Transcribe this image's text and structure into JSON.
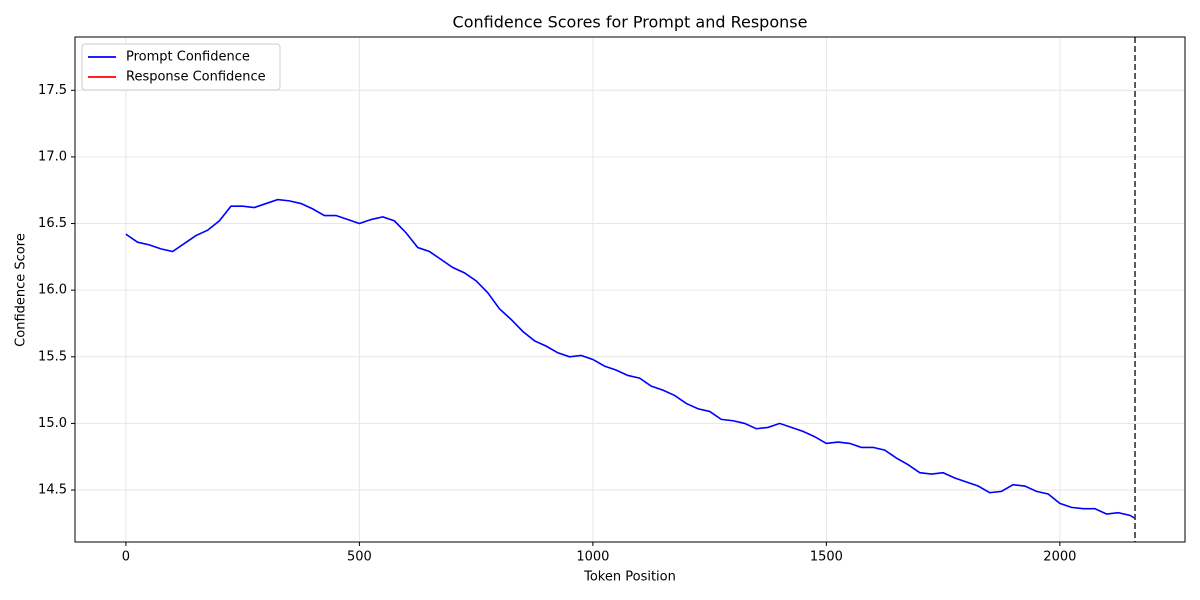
{
  "chart_data": {
    "type": "line",
    "title": "Confidence Scores for Prompt and Response",
    "x_label": "Token Position",
    "y_label": "Confidence Score",
    "xlim": [
      -109,
      2268
    ],
    "ylim": [
      14.11,
      17.9
    ],
    "xticks": [
      0,
      500,
      1000,
      1500,
      2000
    ],
    "yticks": [
      14.5,
      15.0,
      15.5,
      16.0,
      16.5,
      17.0,
      17.5
    ],
    "grid": true,
    "legend": "upper left",
    "vline": {
      "x": 2161,
      "color": "#333333"
    },
    "series": [
      {
        "name": "Prompt Confidence",
        "color": "#0000ff",
        "x": [
          0,
          25,
          50,
          75,
          100,
          125,
          150,
          175,
          200,
          225,
          250,
          275,
          300,
          325,
          350,
          375,
          400,
          425,
          450,
          475,
          500,
          525,
          550,
          575,
          600,
          625,
          650,
          675,
          700,
          725,
          750,
          775,
          800,
          825,
          850,
          875,
          900,
          925,
          950,
          975,
          1000,
          1025,
          1050,
          1075,
          1100,
          1125,
          1150,
          1175,
          1200,
          1225,
          1250,
          1275,
          1300,
          1325,
          1350,
          1375,
          1400,
          1425,
          1450,
          1475,
          1500,
          1525,
          1550,
          1575,
          1600,
          1625,
          1650,
          1675,
          1700,
          1725,
          1750,
          1775,
          1800,
          1825,
          1850,
          1875,
          1900,
          1925,
          1950,
          1975,
          2000,
          2025,
          2050,
          2075,
          2100,
          2125,
          2150,
          2160
        ],
        "values": [
          16.42,
          16.36,
          16.34,
          16.31,
          16.29,
          16.35,
          16.41,
          16.45,
          16.52,
          16.63,
          16.63,
          16.62,
          16.65,
          16.68,
          16.67,
          16.65,
          16.61,
          16.56,
          16.56,
          16.53,
          16.5,
          16.53,
          16.55,
          16.52,
          16.43,
          16.32,
          16.29,
          16.23,
          16.17,
          16.13,
          16.07,
          15.98,
          15.86,
          15.78,
          15.69,
          15.62,
          15.58,
          15.53,
          15.5,
          15.51,
          15.48,
          15.43,
          15.4,
          15.36,
          15.34,
          15.28,
          15.25,
          15.21,
          15.15,
          15.11,
          15.09,
          15.03,
          15.02,
          15.0,
          14.96,
          14.97,
          15.0,
          14.97,
          14.94,
          14.9,
          14.85,
          14.86,
          14.85,
          14.82,
          14.82,
          14.8,
          14.74,
          14.69,
          14.63,
          14.62,
          14.63,
          14.59,
          14.56,
          14.53,
          14.48,
          14.49,
          14.54,
          14.53,
          14.49,
          14.47,
          14.4,
          14.37,
          14.36,
          14.36,
          14.32,
          14.33,
          14.31,
          14.29
        ]
      },
      {
        "name": "Response Confidence",
        "color": "#ff0000",
        "x": [],
        "values": []
      }
    ]
  }
}
